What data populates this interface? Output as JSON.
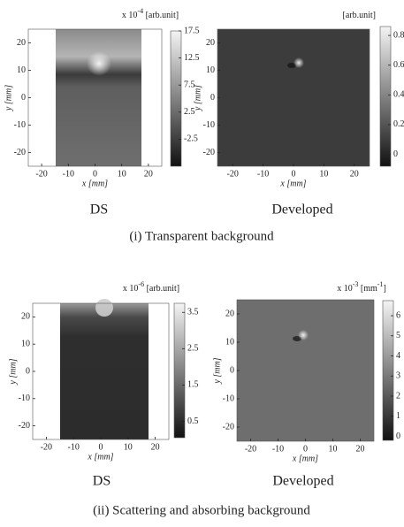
{
  "figures": [
    {
      "caption": "(i) Transparent background",
      "panels": [
        {
          "label": "DS",
          "unit": [
            "x 10",
            "-4",
            " [arb.unit]"
          ],
          "x_label": "x [mm]",
          "y_label": "y [mm]",
          "xlim": [
            -25,
            25
          ],
          "ylim": [
            -25,
            25
          ],
          "xticks": [
            -20,
            -10,
            0,
            10,
            20
          ],
          "yticks": [
            -20,
            -10,
            0,
            10,
            20
          ],
          "clim": [
            -7.5,
            17.5
          ],
          "cticks": [
            17.5,
            12.5,
            7.5,
            2.5,
            -2.5
          ]
        },
        {
          "label": "Developed",
          "unit": [
            "[arb.unit]"
          ],
          "x_label": "x [mm]",
          "y_label": "y [mm]",
          "xlim": [
            -25,
            25
          ],
          "ylim": [
            -25,
            25
          ],
          "xticks": [
            -20,
            -10,
            0,
            10,
            20
          ],
          "yticks": [
            -20,
            -10,
            0,
            10,
            20
          ],
          "clim": [
            -0.08,
            0.86
          ],
          "cticks": [
            0.8,
            0.6,
            0.4,
            0.2,
            0
          ]
        }
      ]
    },
    {
      "caption": "(ii) Scattering and absorbing  background",
      "panels": [
        {
          "label": "DS",
          "unit": [
            "x 10",
            "-6",
            " [arb.unit]"
          ],
          "x_label": "x [mm]",
          "y_label": "y [mm]",
          "xlim": [
            -25,
            25
          ],
          "ylim": [
            -25,
            25
          ],
          "xticks": [
            -20,
            -10,
            0,
            10,
            20
          ],
          "yticks": [
            -20,
            -10,
            0,
            10,
            20
          ],
          "clim": [
            0.05,
            3.75
          ],
          "cticks": [
            3.5,
            2.5,
            1.5,
            0.5
          ]
        },
        {
          "label": "Developed",
          "unit": [
            "x 10",
            "-3",
            " [mm",
            "-1",
            "]"
          ],
          "x_label": "x [mm]",
          "y_label": "y [mm]",
          "xlim": [
            -25,
            25
          ],
          "ylim": [
            -25,
            25
          ],
          "xticks": [
            -20,
            -10,
            0,
            10,
            20
          ],
          "yticks": [
            -20,
            -10,
            0,
            10,
            20
          ],
          "clim": [
            -0.2,
            6.75
          ],
          "cticks": [
            6,
            5,
            4,
            3,
            2,
            1,
            0
          ]
        }
      ]
    }
  ]
}
